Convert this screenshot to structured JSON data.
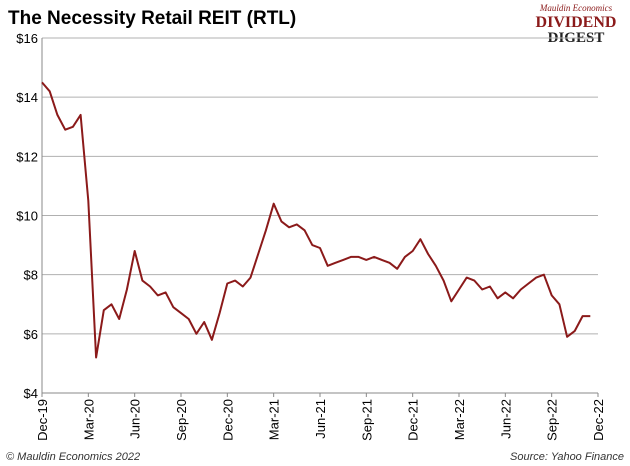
{
  "chart_data": {
    "type": "line",
    "title": "The Necessity Retail REIT (RTL)",
    "logo": {
      "top": "Mauldin Economics",
      "middle": "DIVIDEND",
      "bottom": "DIGEST"
    },
    "copyright": "© Mauldin Economics 2022",
    "source": "Source: Yahoo Finance",
    "categories": [
      "Dec-19",
      null,
      null,
      null,
      null,
      null,
      "Mar-20",
      null,
      null,
      null,
      null,
      null,
      "Jun-20",
      null,
      null,
      null,
      null,
      null,
      "Sep-20",
      null,
      null,
      null,
      null,
      null,
      "Dec-20",
      null,
      null,
      null,
      null,
      null,
      "Mar-21",
      null,
      null,
      null,
      null,
      null,
      "Jun-21",
      null,
      null,
      null,
      null,
      null,
      "Sep-21",
      null,
      null,
      null,
      null,
      null,
      "Dec-21",
      null,
      null,
      null,
      null,
      null,
      "Mar-22",
      null,
      null,
      null,
      null,
      null,
      "Jun-22",
      null,
      null,
      null,
      null,
      null,
      "Sep-22",
      null,
      null,
      null,
      null,
      null,
      "Dec-22"
    ],
    "series": [
      {
        "name": "RTL",
        "color": "#8b1a1a",
        "values": [
          14.5,
          14.2,
          13.4,
          12.9,
          13.0,
          13.4,
          10.5,
          5.2,
          6.8,
          7.0,
          6.5,
          7.5,
          8.8,
          7.8,
          7.6,
          7.3,
          7.4,
          6.9,
          6.7,
          6.5,
          6.0,
          6.4,
          5.8,
          6.7,
          7.7,
          7.8,
          7.6,
          7.9,
          8.7,
          9.5,
          10.4,
          9.8,
          9.6,
          9.7,
          9.5,
          9.0,
          8.9,
          8.3,
          8.4,
          8.5,
          8.6,
          8.6,
          8.5,
          8.6,
          8.5,
          8.4,
          8.2,
          8.6,
          8.8,
          9.2,
          8.7,
          8.3,
          7.8,
          7.1,
          7.5,
          7.9,
          7.8,
          7.5,
          7.6,
          7.2,
          7.4,
          7.2,
          7.5,
          7.7,
          7.9,
          8.0,
          7.3,
          7.0,
          5.9,
          6.1,
          6.6,
          6.6,
          null
        ]
      }
    ],
    "ylim": [
      4,
      16
    ],
    "yticks": [
      {
        "value": 4,
        "label": "$4"
      },
      {
        "value": 6,
        "label": "$6"
      },
      {
        "value": 8,
        "label": "$8"
      },
      {
        "value": 10,
        "label": "$10"
      },
      {
        "value": 12,
        "label": "$12"
      },
      {
        "value": 14,
        "label": "$14"
      },
      {
        "value": 16,
        "label": "$16"
      }
    ],
    "grid": true
  }
}
